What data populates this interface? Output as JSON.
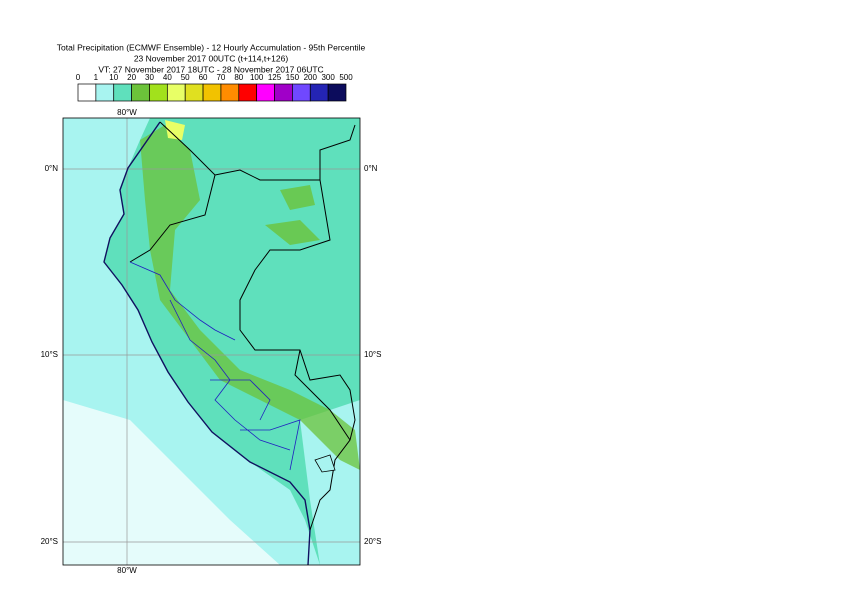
{
  "title": [
    "Total Precipitation (ECMWF Ensemble) - 12 Hourly Accumulation - 95th Percentile",
    "23 November 2017 00UTC (t+114,t+126)",
    "VT: 27 November 2017 18UTC - 28 November 2017 06UTC"
  ],
  "legend": {
    "labels": [
      "0",
      "1",
      "10",
      "20",
      "30",
      "40",
      "50",
      "60",
      "70",
      "80",
      "100",
      "125",
      "150",
      "200",
      "300",
      "500"
    ],
    "colors": [
      "#ffffff",
      "#a8f4f0",
      "#5fe0bc",
      "#6cc33a",
      "#a2e11c",
      "#e8ff66",
      "#e0e020",
      "#f2c200",
      "#ff8c00",
      "#ff0000",
      "#ff00ff",
      "#a000c8",
      "#7048ff",
      "#2424b4",
      "#0c0c5c"
    ]
  },
  "map": {
    "longitude_labels": [
      "80°W"
    ],
    "latitude_labels": [
      "0°N",
      "10°S",
      "20°S"
    ]
  }
}
